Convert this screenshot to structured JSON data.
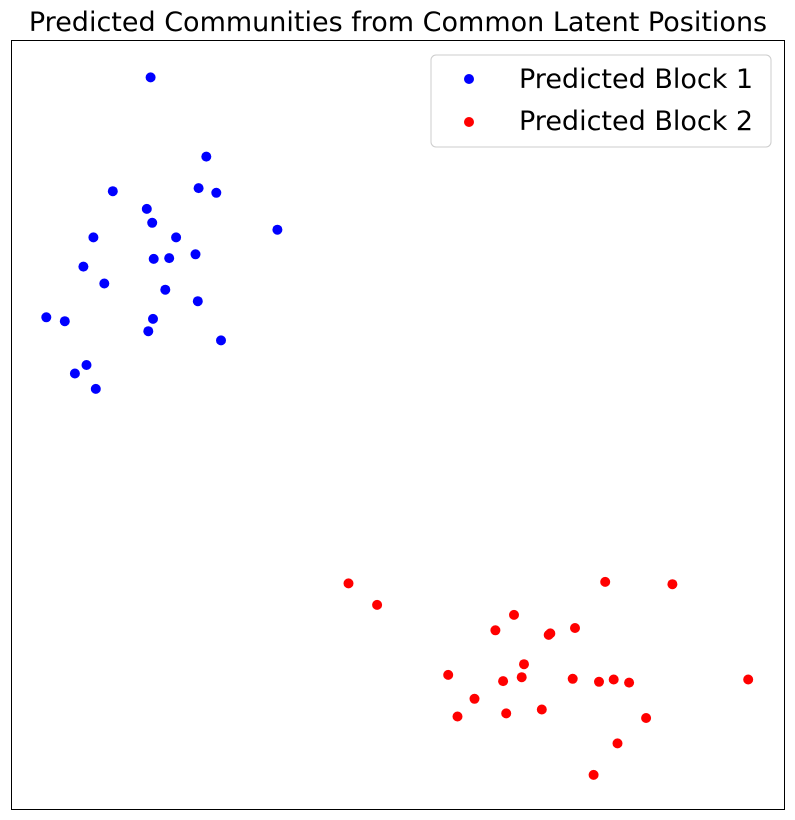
{
  "chart_data": {
    "type": "scatter",
    "title": "Predicted Communities from Common Latent Positions",
    "xlabel": "",
    "ylabel": "",
    "axes_ticks_visible": false,
    "grid": false,
    "legend_position": "top-right",
    "xlim": [
      0,
      100
    ],
    "ylim": [
      0,
      100
    ],
    "series": [
      {
        "name": "Predicted Block 1",
        "color": "#0000ff",
        "points": [
          [
            18.0,
            95.2
          ],
          [
            25.2,
            84.9
          ],
          [
            13.1,
            80.4
          ],
          [
            24.2,
            80.8
          ],
          [
            26.5,
            80.2
          ],
          [
            17.5,
            78.1
          ],
          [
            18.2,
            76.3
          ],
          [
            34.4,
            75.4
          ],
          [
            10.6,
            74.4
          ],
          [
            21.3,
            74.4
          ],
          [
            9.3,
            70.6
          ],
          [
            18.4,
            71.6
          ],
          [
            20.4,
            71.7
          ],
          [
            23.8,
            72.2
          ],
          [
            12.0,
            68.4
          ],
          [
            19.9,
            67.6
          ],
          [
            24.1,
            66.1
          ],
          [
            4.5,
            64.0
          ],
          [
            6.9,
            63.5
          ],
          [
            18.3,
            63.8
          ],
          [
            17.7,
            62.2
          ],
          [
            27.1,
            61.0
          ],
          [
            9.7,
            57.8
          ],
          [
            8.2,
            56.7
          ],
          [
            10.9,
            54.7
          ]
        ]
      },
      {
        "name": "Predicted Block 2",
        "color": "#ff0000",
        "points": [
          [
            43.6,
            29.4
          ],
          [
            76.8,
            29.6
          ],
          [
            85.5,
            29.3
          ],
          [
            47.3,
            26.6
          ],
          [
            65.0,
            25.3
          ],
          [
            62.6,
            23.3
          ],
          [
            72.9,
            23.6
          ],
          [
            69.7,
            22.9
          ],
          [
            69.5,
            22.7
          ],
          [
            66.3,
            18.9
          ],
          [
            56.5,
            17.5
          ],
          [
            66.0,
            17.2
          ],
          [
            72.6,
            17.0
          ],
          [
            63.6,
            16.7
          ],
          [
            76.0,
            16.6
          ],
          [
            77.9,
            16.9
          ],
          [
            79.9,
            16.5
          ],
          [
            95.3,
            16.9
          ],
          [
            59.9,
            14.4
          ],
          [
            68.6,
            13.0
          ],
          [
            57.7,
            12.1
          ],
          [
            64.0,
            12.5
          ],
          [
            82.1,
            11.9
          ],
          [
            78.4,
            8.6
          ],
          [
            75.3,
            4.5
          ]
        ]
      }
    ]
  }
}
